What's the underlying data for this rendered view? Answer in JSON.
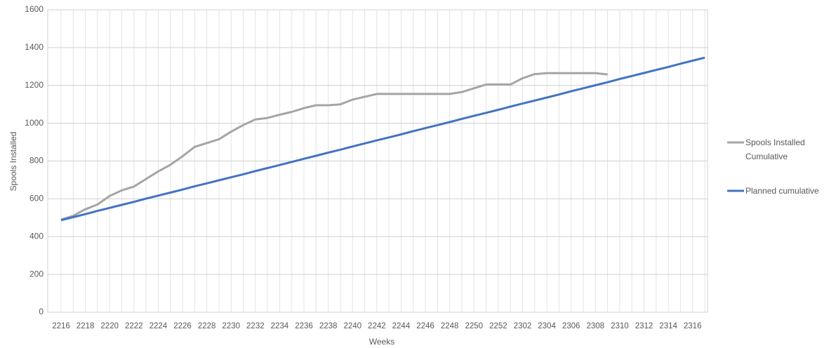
{
  "chart_data": {
    "type": "line",
    "y_label": "Spools Installed",
    "x_label": "Weeks",
    "categories": [
      "2216",
      null,
      "2218",
      null,
      "2220",
      null,
      "2222",
      null,
      "2224",
      null,
      "2226",
      null,
      "2228",
      null,
      "2230",
      null,
      "2232",
      null,
      "2234",
      null,
      "2236",
      null,
      "2238",
      null,
      "2240",
      null,
      "2242",
      null,
      "2244",
      null,
      "2246",
      null,
      "2248",
      null,
      "2250",
      null,
      "2252",
      null,
      "2302",
      null,
      "2304",
      null,
      "2306",
      null,
      "2308",
      null,
      "2310",
      null,
      "2312",
      null,
      "2314",
      null,
      "2316",
      null
    ],
    "series": [
      {
        "name": "Spools Installed Cumulative",
        "color": "#a5a5a5",
        "values": [
          490,
          510,
          545,
          570,
          615,
          645,
          665,
          705,
          745,
          780,
          825,
          875,
          895,
          915,
          955,
          990,
          1020,
          1028,
          1045,
          1060,
          1080,
          1095,
          1095,
          1100,
          1125,
          1140,
          1155,
          1155,
          1155,
          1155,
          1155,
          1155,
          1155,
          1165,
          1185,
          1205,
          1205,
          1205,
          1238,
          1260,
          1265,
          1265,
          1265,
          1265,
          1265,
          1258,
          null,
          null,
          null,
          null,
          null,
          null,
          null,
          null
        ]
      },
      {
        "name": "Planned cumulative",
        "color": "#4472c4",
        "values": [
          487,
          503,
          519,
          536,
          552,
          568,
          584,
          601,
          617,
          633,
          649,
          666,
          682,
          698,
          714,
          730,
          747,
          763,
          779,
          795,
          812,
          828,
          844,
          860,
          877,
          893,
          909,
          925,
          941,
          958,
          974,
          990,
          1006,
          1023,
          1039,
          1055,
          1071,
          1088,
          1104,
          1120,
          1136,
          1152,
          1169,
          1185,
          1201,
          1217,
          1234,
          1250,
          1266,
          1282,
          1298,
          1315,
          1331,
          1347
        ]
      }
    ],
    "ylim": [
      0,
      1600
    ],
    "yticks": [
      0,
      200,
      400,
      600,
      800,
      1000,
      1200,
      1400,
      1600
    ],
    "grid": true,
    "legend": "right"
  }
}
